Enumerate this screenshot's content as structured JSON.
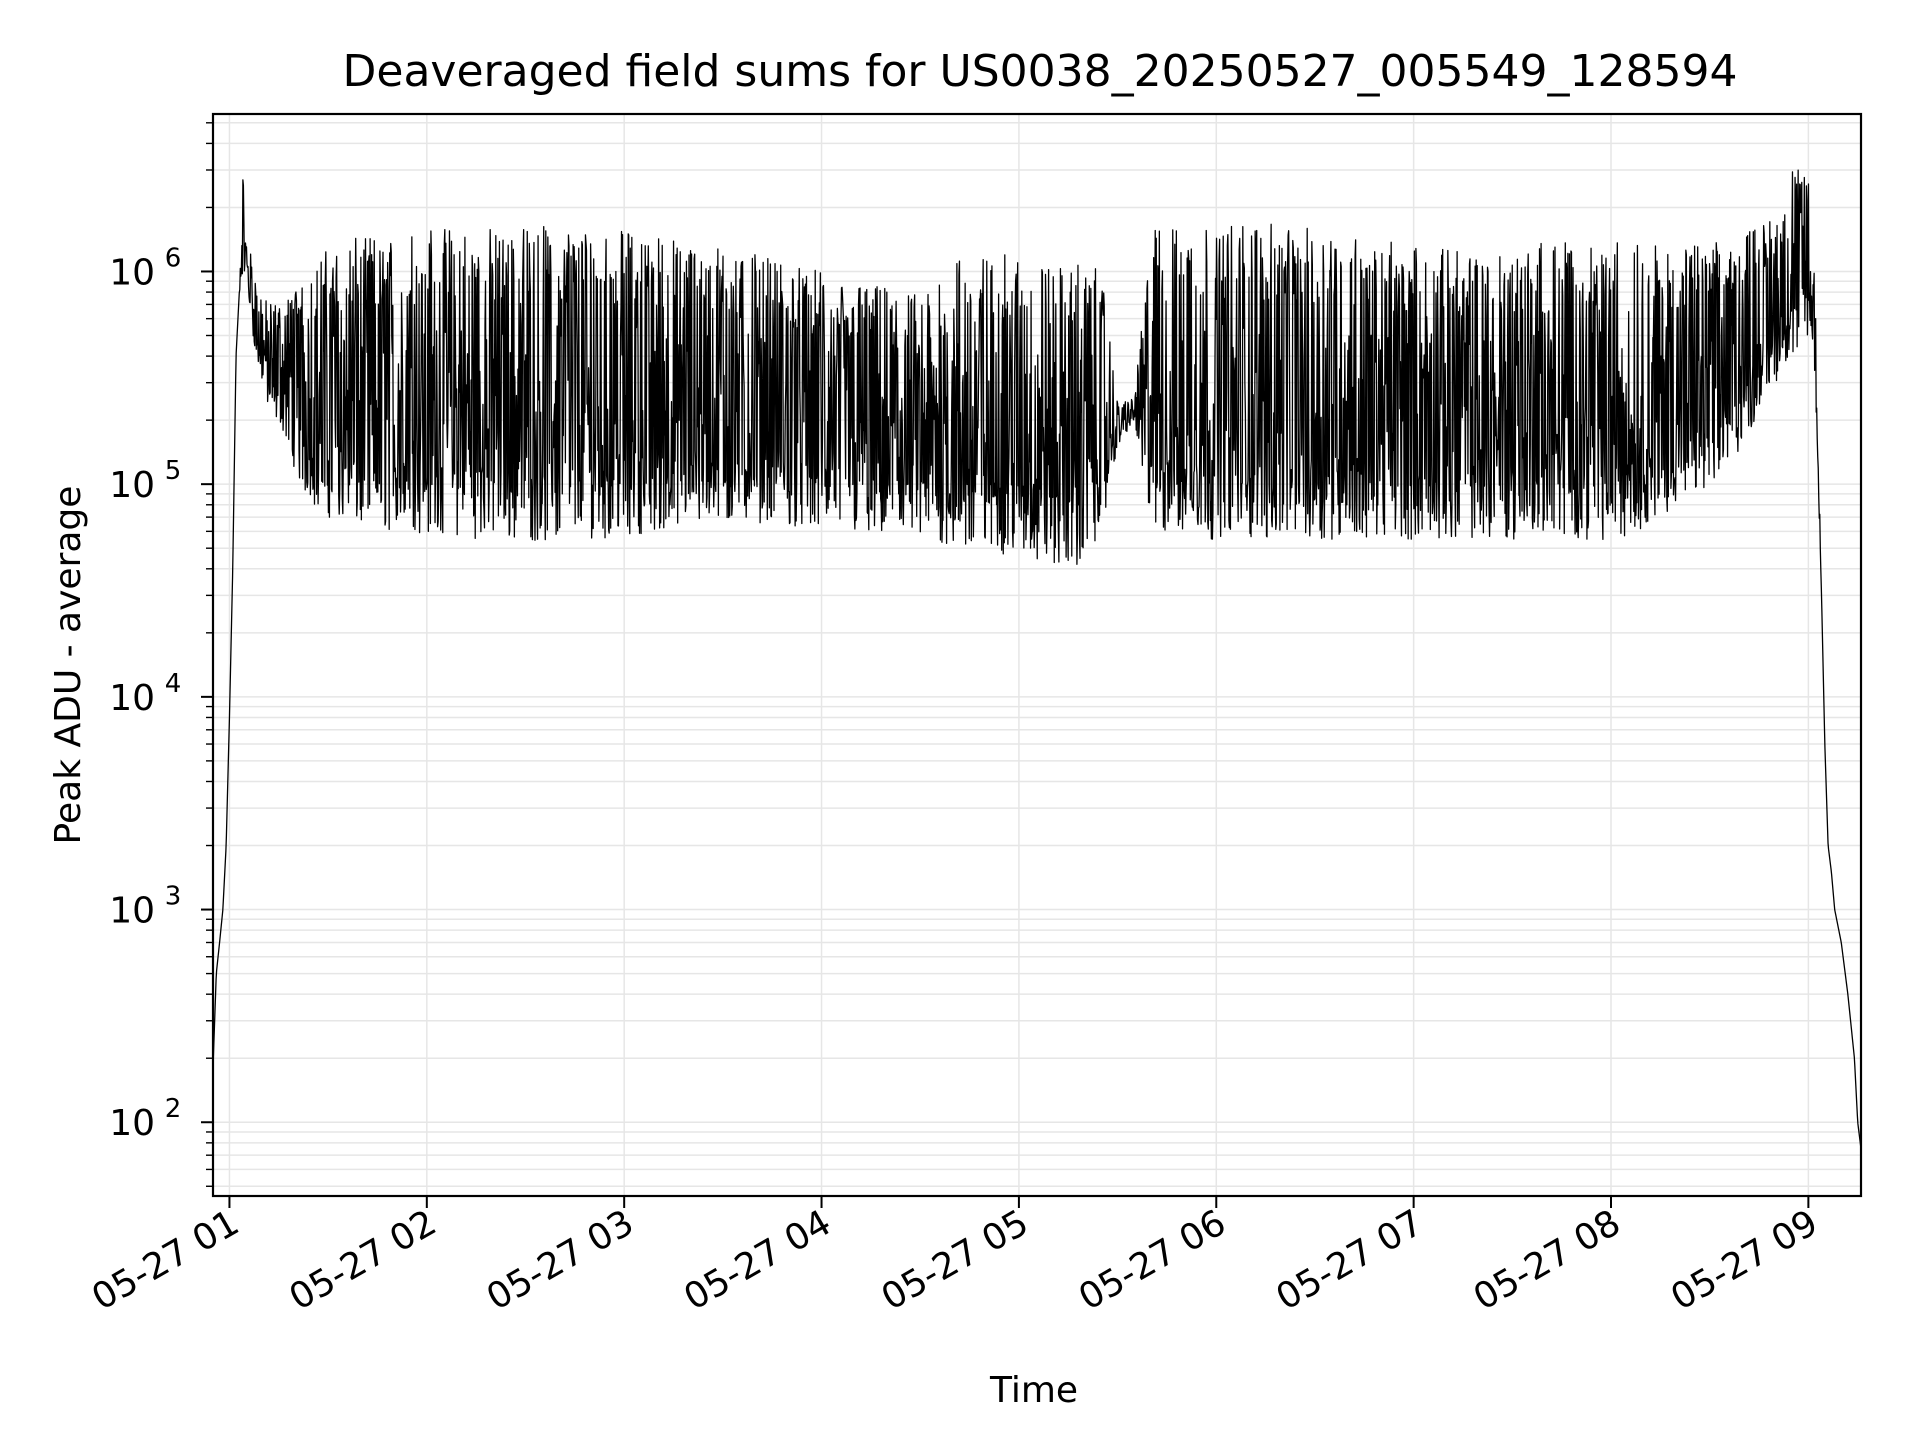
{
  "chart_data": {
    "type": "line",
    "title": "Deaveraged field sums for US0038_20250527_005549_128594",
    "xlabel": "Time",
    "ylabel": "Peak ADU - average",
    "yscale": "log",
    "xlim": [
      "05-27 00:55",
      "05-27 09:16"
    ],
    "ylim": [
      45,
      5500000
    ],
    "grid": true,
    "x_ticks": [
      "05-27 01",
      "05-27 02",
      "05-27 03",
      "05-27 04",
      "05-27 05",
      "05-27 06",
      "05-27 07",
      "05-27 08",
      "05-27 09"
    ],
    "y_ticks": [
      {
        "base": "10",
        "exp": "2",
        "value": 100
      },
      {
        "base": "10",
        "exp": "3",
        "value": 1000
      },
      {
        "base": "10",
        "exp": "4",
        "value": 10000
      },
      {
        "base": "10",
        "exp": "5",
        "value": 100000
      },
      {
        "base": "10",
        "exp": "6",
        "value": 1000000
      }
    ],
    "line_color": "#000000",
    "grid_color": "#e6e6e6",
    "series": [
      {
        "x": [
          "05-27 00:55",
          "05-27 00:56",
          "05-27 00:57",
          "05-27 00:58",
          "05-27 00:59",
          "05-27 01:00",
          "05-27 01:01",
          "05-27 01:02",
          "05-27 01:03",
          "05-27 01:04",
          "05-27 01:05",
          "05-27 01:06",
          "05-27 01:08",
          "05-27 01:10",
          "05-27 01:12",
          "05-27 01:15",
          "05-27 01:18",
          "05-27 01:21",
          "05-27 01:25",
          "05-27 01:30",
          "05-27 01:35",
          "05-27 01:40",
          "05-27 01:45",
          "05-27 01:50",
          "05-27 01:55",
          "05-27 02:00",
          "05-27 02:10",
          "05-27 02:20",
          "05-27 02:30",
          "05-27 02:40",
          "05-27 02:50",
          "05-27 03:00",
          "05-27 03:10",
          "05-27 03:20",
          "05-27 03:30",
          "05-27 03:40",
          "05-27 03:50",
          "05-27 04:00",
          "05-27 04:10",
          "05-27 04:20",
          "05-27 04:30",
          "05-27 04:40",
          "05-27 04:50",
          "05-27 05:00",
          "05-27 05:10",
          "05-27 05:20",
          "05-27 05:25",
          "05-27 05:30",
          "05-27 05:35",
          "05-27 05:40",
          "05-27 05:50",
          "05-27 06:00",
          "05-27 06:10",
          "05-27 06:20",
          "05-27 06:30",
          "05-27 06:40",
          "05-27 06:50",
          "05-27 07:00",
          "05-27 07:10",
          "05-27 07:20",
          "05-27 07:30",
          "05-27 07:40",
          "05-27 07:50",
          "05-27 08:00",
          "05-27 08:10",
          "05-27 08:20",
          "05-27 08:30",
          "05-27 08:40",
          "05-27 08:50",
          "05-27 08:55",
          "05-27 09:00",
          "05-27 09:02",
          "05-27 09:04",
          "05-27 09:05",
          "05-27 09:06",
          "05-27 09:07",
          "05-27 09:08",
          "05-27 09:10",
          "05-27 09:12",
          "05-27 09:14",
          "05-27 09:15",
          "05-27 09:16"
        ],
        "low": [
          180,
          500,
          700,
          1000,
          2000,
          8000,
          40000,
          400000,
          800000,
          900000,
          1100000,
          700000,
          400000,
          300000,
          200000,
          200000,
          150000,
          100000,
          80000,
          70000,
          65000,
          62000,
          60000,
          60000,
          58000,
          58000,
          56000,
          55000,
          54000,
          53000,
          55000,
          57000,
          60000,
          62000,
          65000,
          66000,
          64000,
          60000,
          58000,
          55000,
          52000,
          50000,
          48000,
          45000,
          42000,
          40000,
          60000,
          150000,
          200000,
          60000,
          55000,
          55000,
          55000,
          55000,
          55000,
          55000,
          55000,
          55000,
          55000,
          55000,
          55000,
          55000,
          55000,
          55000,
          60000,
          80000,
          100000,
          150000,
          300000,
          400000,
          500000,
          300000,
          30000,
          6000,
          2000,
          1500,
          1000,
          700,
          400,
          200,
          100,
          75
        ],
        "high": [
          180,
          500,
          700,
          1000,
          2000,
          8000,
          40000,
          400000,
          800000,
          3000000,
          1500000,
          1400000,
          900000,
          800000,
          700000,
          700000,
          800000,
          900000,
          1100000,
          1300000,
          1400000,
          1450000,
          1500000,
          1550000,
          1600000,
          1600000,
          1650000,
          1650000,
          1650000,
          1650000,
          1600000,
          1550000,
          1500000,
          1400000,
          1300000,
          1200000,
          1100000,
          1000000,
          900000,
          850000,
          800000,
          1200000,
          1200000,
          1200000,
          1100000,
          1100000,
          1000000,
          250000,
          250000,
          1600000,
          1650000,
          1700000,
          1700000,
          1650000,
          1600000,
          1500000,
          1400000,
          1350000,
          1300000,
          1300000,
          1350000,
          1400000,
          1450000,
          1400000,
          1350000,
          1300000,
          1350000,
          1500000,
          1800000,
          3000000,
          3000000,
          1000000,
          30000,
          6000,
          2000,
          1500,
          1000,
          700,
          400,
          200,
          100,
          75
        ]
      }
    ]
  }
}
